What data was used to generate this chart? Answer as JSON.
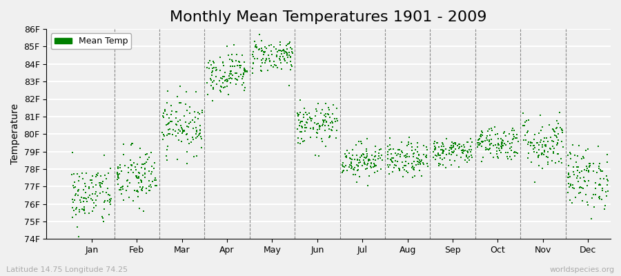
{
  "title": "Monthly Mean Temperatures 1901 - 2009",
  "ylabel": "Temperature",
  "xlabel_labels": [
    "Jan",
    "Feb",
    "Mar",
    "Apr",
    "May",
    "Jun",
    "Jul",
    "Aug",
    "Sep",
    "Oct",
    "Nov",
    "Dec"
  ],
  "subtitle": "Latitude 14.75 Longitude 74.25",
  "watermark": "worldspecies.org",
  "dot_color": "#008000",
  "background_color": "#f0f0f0",
  "plot_bg_color": "#f0f0f0",
  "ylim_min": 74,
  "ylim_max": 86,
  "ytick_labels": [
    "74F",
    "75F",
    "76F",
    "77F",
    "78F",
    "79F",
    "80F",
    "81F",
    "82F",
    "83F",
    "84F",
    "85F",
    "86F"
  ],
  "ytick_values": [
    74,
    75,
    76,
    77,
    78,
    79,
    80,
    81,
    82,
    83,
    84,
    85,
    86
  ],
  "n_years": 109,
  "monthly_mean_F": [
    76.5,
    77.5,
    80.5,
    83.5,
    84.5,
    80.5,
    78.5,
    78.5,
    79.0,
    79.5,
    79.5,
    77.5
  ],
  "monthly_std_F": [
    0.9,
    0.9,
    0.8,
    0.6,
    0.5,
    0.6,
    0.5,
    0.5,
    0.4,
    0.5,
    0.8,
    0.9
  ],
  "seed": 42,
  "title_fontsize": 16,
  "axis_fontsize": 10,
  "tick_fontsize": 9,
  "legend_fontsize": 9,
  "dot_size": 4,
  "dot_marker": "s"
}
